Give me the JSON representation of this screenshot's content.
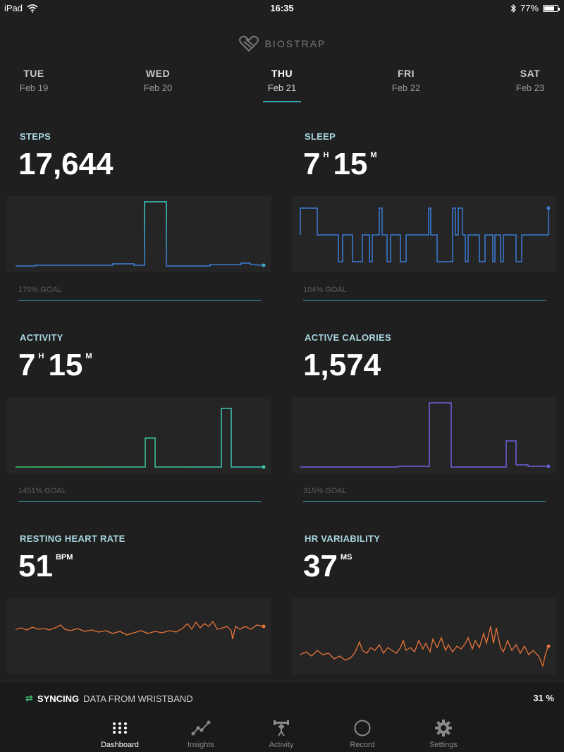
{
  "status": {
    "device": "iPad",
    "time": "16:35",
    "battery": "77%",
    "battery_level": 0.77
  },
  "brand": "BIOSTRAP",
  "days": [
    {
      "name": "TUE",
      "date": "Feb 19"
    },
    {
      "name": "WED",
      "date": "Feb 20"
    },
    {
      "name": "THU",
      "date": "Feb 21"
    },
    {
      "name": "FRI",
      "date": "Feb 22"
    },
    {
      "name": "SAT",
      "date": "Feb 23"
    }
  ],
  "selected_day": "THU",
  "cards": {
    "steps": {
      "title": "STEPS",
      "value": "17,644",
      "goal": "176% GOAL",
      "color": "#4a90c8"
    },
    "sleep": {
      "title": "SLEEP",
      "hours": "7",
      "h_unit": "H",
      "minutes": "15",
      "m_unit": "M",
      "goal": "104% GOAL",
      "color": "#3b7bd6"
    },
    "activity": {
      "title": "ACTIVITY",
      "hours": "7",
      "h_unit": "H",
      "minutes": "15",
      "m_unit": "M",
      "goal": "1451% GOAL",
      "color": "#3dc7a0"
    },
    "calories": {
      "title": "ACTIVE CALORIES",
      "value": "1,574",
      "goal": "315% GOAL",
      "color": "#6b63e0"
    },
    "rhr": {
      "title": "RESTING HEART RATE",
      "value": "51",
      "unit": "BPM",
      "color": "#e8743a"
    },
    "hrv": {
      "title": "HR VARIABILITY",
      "value": "37",
      "unit": "MS",
      "color": "#e8743a"
    }
  },
  "sync": {
    "label": "SYNCING",
    "text": "DATA FROM WRISTBAND",
    "percent": "31 %"
  },
  "tabs": [
    {
      "label": "Dashboard",
      "icon": "dashboard-grid-icon"
    },
    {
      "label": "Insights",
      "icon": "insights-graph-icon"
    },
    {
      "label": "Activity",
      "icon": "activity-weights-icon"
    },
    {
      "label": "Record",
      "icon": "record-circle-icon"
    },
    {
      "label": "Settings",
      "icon": "settings-gear-icon"
    }
  ],
  "active_tab": "Dashboard"
}
